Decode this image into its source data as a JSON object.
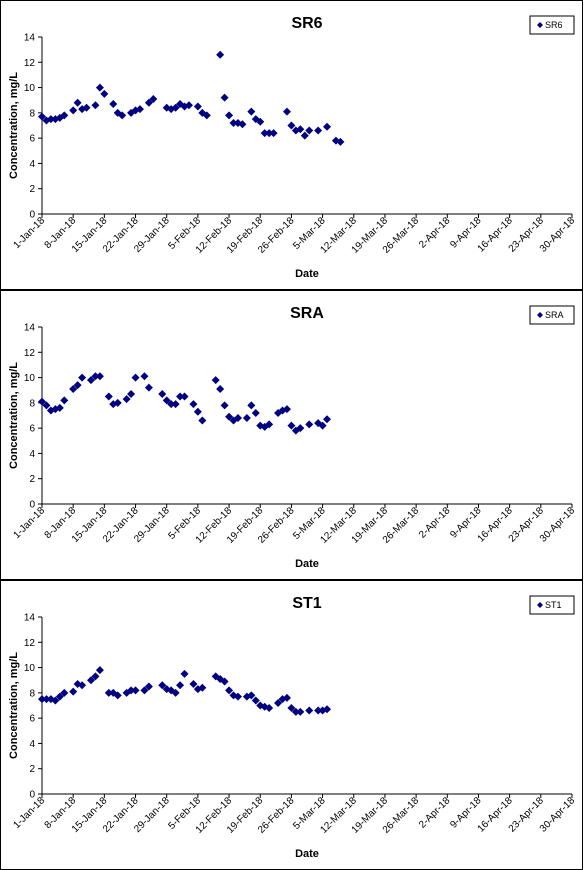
{
  "chart_data": [
    {
      "type": "scatter",
      "title": "SR6",
      "xlabel": "Date",
      "ylabel": "Concentration, mg/L",
      "ylim": [
        0,
        14
      ],
      "yticks": [
        0,
        2,
        4,
        6,
        8,
        10,
        12,
        14
      ],
      "xlim": [
        "2018-01-01",
        "2018-04-30"
      ],
      "xtick_labels": [
        "1-Jan-18",
        "8-Jan-18",
        "15-Jan-18",
        "22-Jan-18",
        "29-Jan-18",
        "5-Feb-18",
        "12-Feb-18",
        "19-Feb-18",
        "26-Feb-18",
        "5-Mar-18",
        "12-Mar-18",
        "19-Mar-18",
        "26-Mar-18",
        "2-Apr-18",
        "9-Apr-18",
        "16-Apr-18",
        "23-Apr-18",
        "30-Apr-18"
      ],
      "legend": "top-right",
      "marker_color": "#000080",
      "series": [
        {
          "name": "SR6",
          "points": [
            [
              "2018-01-01",
              7.7
            ],
            [
              "2018-01-02",
              7.4
            ],
            [
              "2018-01-03",
              7.5
            ],
            [
              "2018-01-04",
              7.5
            ],
            [
              "2018-01-05",
              7.6
            ],
            [
              "2018-01-06",
              7.8
            ],
            [
              "2018-01-08",
              8.2
            ],
            [
              "2018-01-09",
              8.8
            ],
            [
              "2018-01-10",
              8.3
            ],
            [
              "2018-01-11",
              8.4
            ],
            [
              "2018-01-13",
              8.6
            ],
            [
              "2018-01-14",
              10.0
            ],
            [
              "2018-01-15",
              9.5
            ],
            [
              "2018-01-17",
              8.7
            ],
            [
              "2018-01-18",
              8.0
            ],
            [
              "2018-01-19",
              7.8
            ],
            [
              "2018-01-21",
              8.0
            ],
            [
              "2018-01-22",
              8.2
            ],
            [
              "2018-01-23",
              8.3
            ],
            [
              "2018-01-25",
              8.8
            ],
            [
              "2018-01-26",
              9.1
            ],
            [
              "2018-01-29",
              8.4
            ],
            [
              "2018-01-30",
              8.3
            ],
            [
              "2018-01-31",
              8.4
            ],
            [
              "2018-02-01",
              8.7
            ],
            [
              "2018-02-02",
              8.5
            ],
            [
              "2018-02-03",
              8.6
            ],
            [
              "2018-02-05",
              8.5
            ],
            [
              "2018-02-06",
              8.0
            ],
            [
              "2018-02-07",
              7.8
            ],
            [
              "2018-02-10",
              12.6
            ],
            [
              "2018-02-11",
              9.2
            ],
            [
              "2018-02-12",
              7.8
            ],
            [
              "2018-02-13",
              7.2
            ],
            [
              "2018-02-14",
              7.2
            ],
            [
              "2018-02-15",
              7.1
            ],
            [
              "2018-02-17",
              8.1
            ],
            [
              "2018-02-18",
              7.5
            ],
            [
              "2018-02-19",
              7.3
            ],
            [
              "2018-02-20",
              6.4
            ],
            [
              "2018-02-21",
              6.4
            ],
            [
              "2018-02-22",
              6.4
            ],
            [
              "2018-02-25",
              8.1
            ],
            [
              "2018-02-26",
              7.0
            ],
            [
              "2018-02-27",
              6.6
            ],
            [
              "2018-02-28",
              6.7
            ],
            [
              "2018-03-01",
              6.2
            ],
            [
              "2018-03-02",
              6.6
            ],
            [
              "2018-03-04",
              6.6
            ],
            [
              "2018-03-06",
              6.9
            ],
            [
              "2018-03-08",
              5.8
            ],
            [
              "2018-03-09",
              5.7
            ]
          ]
        }
      ]
    },
    {
      "type": "scatter",
      "title": "SRA",
      "xlabel": "Date",
      "ylabel": "Concentration, mg/L",
      "ylim": [
        0,
        14
      ],
      "yticks": [
        0,
        2,
        4,
        6,
        8,
        10,
        12,
        14
      ],
      "xlim": [
        "2018-01-01",
        "2018-04-30"
      ],
      "xtick_labels": [
        "1-Jan-18",
        "8-Jan-18",
        "15-Jan-18",
        "22-Jan-18",
        "29-Jan-18",
        "5-Feb-18",
        "12-Feb-18",
        "19-Feb-18",
        "26-Feb-18",
        "5-Mar-18",
        "12-Mar-18",
        "19-Mar-18",
        "26-Mar-18",
        "2-Apr-18",
        "9-Apr-18",
        "16-Apr-18",
        "23-Apr-18",
        "30-Apr-18"
      ],
      "legend": "top-right",
      "marker_color": "#000080",
      "series": [
        {
          "name": "SRA",
          "points": [
            [
              "2018-01-01",
              8.1
            ],
            [
              "2018-01-02",
              7.8
            ],
            [
              "2018-01-03",
              7.4
            ],
            [
              "2018-01-04",
              7.5
            ],
            [
              "2018-01-05",
              7.6
            ],
            [
              "2018-01-06",
              8.2
            ],
            [
              "2018-01-08",
              9.1
            ],
            [
              "2018-01-09",
              9.4
            ],
            [
              "2018-01-10",
              10.0
            ],
            [
              "2018-01-12",
              9.8
            ],
            [
              "2018-01-13",
              10.1
            ],
            [
              "2018-01-14",
              10.1
            ],
            [
              "2018-01-16",
              8.5
            ],
            [
              "2018-01-17",
              7.9
            ],
            [
              "2018-01-18",
              8.0
            ],
            [
              "2018-01-20",
              8.3
            ],
            [
              "2018-01-21",
              8.7
            ],
            [
              "2018-01-22",
              10.0
            ],
            [
              "2018-01-24",
              10.1
            ],
            [
              "2018-01-25",
              9.2
            ],
            [
              "2018-01-28",
              8.7
            ],
            [
              "2018-01-29",
              8.2
            ],
            [
              "2018-01-30",
              7.9
            ],
            [
              "2018-01-31",
              7.9
            ],
            [
              "2018-02-01",
              8.5
            ],
            [
              "2018-02-02",
              8.5
            ],
            [
              "2018-02-04",
              7.9
            ],
            [
              "2018-02-05",
              7.3
            ],
            [
              "2018-02-06",
              6.6
            ],
            [
              "2018-02-09",
              9.8
            ],
            [
              "2018-02-10",
              9.1
            ],
            [
              "2018-02-11",
              7.8
            ],
            [
              "2018-02-12",
              6.9
            ],
            [
              "2018-02-13",
              6.6
            ],
            [
              "2018-02-14",
              6.8
            ],
            [
              "2018-02-16",
              6.8
            ],
            [
              "2018-02-17",
              7.8
            ],
            [
              "2018-02-18",
              7.2
            ],
            [
              "2018-02-19",
              6.2
            ],
            [
              "2018-02-20",
              6.1
            ],
            [
              "2018-02-21",
              6.3
            ],
            [
              "2018-02-23",
              7.2
            ],
            [
              "2018-02-24",
              7.4
            ],
            [
              "2018-02-25",
              7.5
            ],
            [
              "2018-02-26",
              6.2
            ],
            [
              "2018-02-27",
              5.8
            ],
            [
              "2018-02-28",
              6.0
            ],
            [
              "2018-03-02",
              6.3
            ],
            [
              "2018-03-04",
              6.4
            ],
            [
              "2018-03-05",
              6.2
            ],
            [
              "2018-03-06",
              6.7
            ]
          ]
        }
      ]
    },
    {
      "type": "scatter",
      "title": "ST1",
      "xlabel": "Date",
      "ylabel": "Concentration, mg/L",
      "ylim": [
        0,
        14
      ],
      "yticks": [
        0,
        2,
        4,
        6,
        8,
        10,
        12,
        14
      ],
      "xlim": [
        "2018-01-01",
        "2018-04-30"
      ],
      "xtick_labels": [
        "1-Jan-18",
        "8-Jan-18",
        "15-Jan-18",
        "22-Jan-18",
        "29-Jan-18",
        "5-Feb-18",
        "12-Feb-18",
        "19-Feb-18",
        "26-Feb-18",
        "5-Mar-18",
        "12-Mar-18",
        "19-Mar-18",
        "26-Mar-18",
        "2-Apr-18",
        "9-Apr-18",
        "16-Apr-18",
        "23-Apr-18",
        "30-Apr-18"
      ],
      "legend": "top-right",
      "marker_color": "#000080",
      "series": [
        {
          "name": "ST1",
          "points": [
            [
              "2018-01-01",
              7.5
            ],
            [
              "2018-01-02",
              7.5
            ],
            [
              "2018-01-03",
              7.5
            ],
            [
              "2018-01-04",
              7.4
            ],
            [
              "2018-01-05",
              7.7
            ],
            [
              "2018-01-06",
              8.0
            ],
            [
              "2018-01-08",
              8.1
            ],
            [
              "2018-01-09",
              8.7
            ],
            [
              "2018-01-10",
              8.6
            ],
            [
              "2018-01-12",
              9.0
            ],
            [
              "2018-01-13",
              9.3
            ],
            [
              "2018-01-14",
              9.8
            ],
            [
              "2018-01-16",
              8.0
            ],
            [
              "2018-01-17",
              8.0
            ],
            [
              "2018-01-18",
              7.8
            ],
            [
              "2018-01-20",
              8.0
            ],
            [
              "2018-01-21",
              8.2
            ],
            [
              "2018-01-22",
              8.2
            ],
            [
              "2018-01-24",
              8.2
            ],
            [
              "2018-01-25",
              8.5
            ],
            [
              "2018-01-28",
              8.6
            ],
            [
              "2018-01-29",
              8.3
            ],
            [
              "2018-01-30",
              8.2
            ],
            [
              "2018-01-31",
              8.0
            ],
            [
              "2018-02-01",
              8.6
            ],
            [
              "2018-02-02",
              9.5
            ],
            [
              "2018-02-04",
              8.7
            ],
            [
              "2018-02-05",
              8.3
            ],
            [
              "2018-02-06",
              8.4
            ],
            [
              "2018-02-09",
              9.3
            ],
            [
              "2018-02-10",
              9.1
            ],
            [
              "2018-02-11",
              8.9
            ],
            [
              "2018-02-12",
              8.2
            ],
            [
              "2018-02-13",
              7.8
            ],
            [
              "2018-02-14",
              7.7
            ],
            [
              "2018-02-16",
              7.7
            ],
            [
              "2018-02-17",
              7.8
            ],
            [
              "2018-02-18",
              7.4
            ],
            [
              "2018-02-19",
              7.0
            ],
            [
              "2018-02-20",
              6.9
            ],
            [
              "2018-02-21",
              6.8
            ],
            [
              "2018-02-23",
              7.2
            ],
            [
              "2018-02-24",
              7.5
            ],
            [
              "2018-02-25",
              7.6
            ],
            [
              "2018-02-26",
              6.8
            ],
            [
              "2018-02-27",
              6.5
            ],
            [
              "2018-02-28",
              6.5
            ],
            [
              "2018-03-02",
              6.6
            ],
            [
              "2018-03-04",
              6.6
            ],
            [
              "2018-03-05",
              6.6
            ],
            [
              "2018-03-06",
              6.7
            ]
          ]
        }
      ]
    }
  ]
}
